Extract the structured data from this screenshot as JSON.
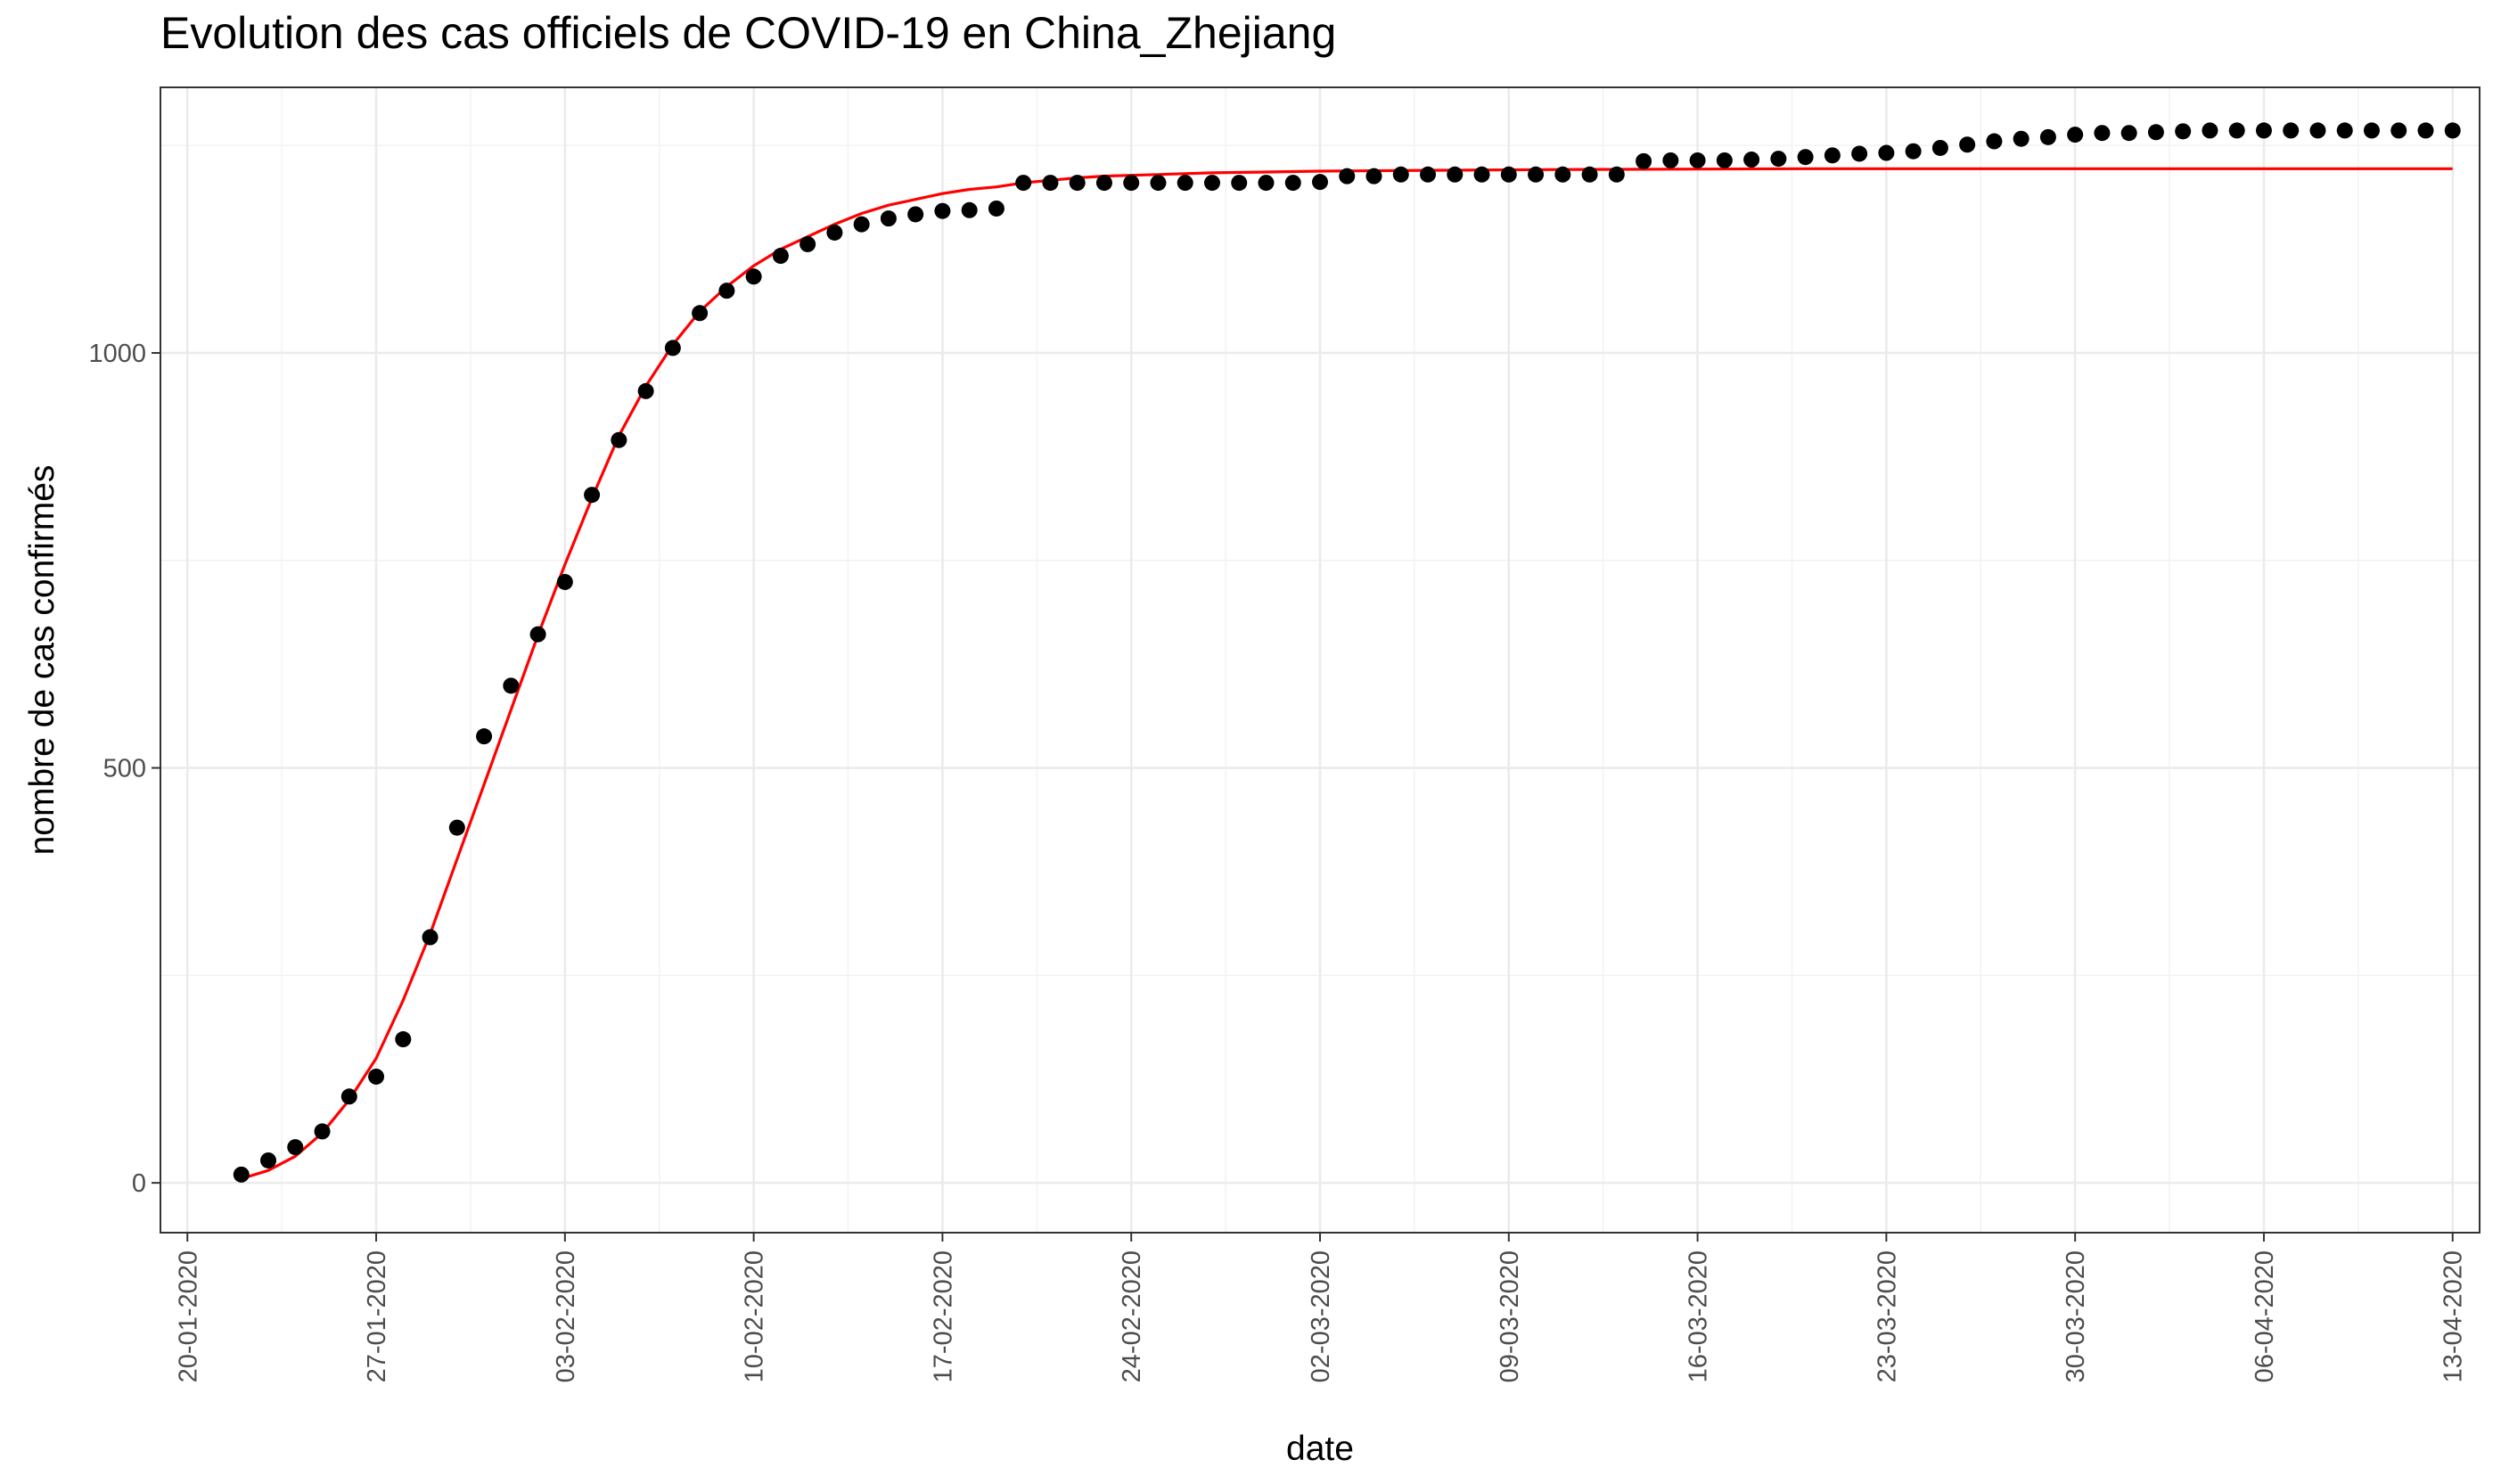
{
  "chart_data": {
    "type": "scatter",
    "title": "Evolution des cas officiels de COVID-19 en China_Zhejiang",
    "xlabel": "date",
    "ylabel": "nombre de cas confirmés",
    "x_start": "2020-01-19",
    "x_end": "2020-04-14",
    "ylim": [
      -60,
      1320
    ],
    "grid": true,
    "x_ticks": [
      "20-01-2020",
      "27-01-2020",
      "03-02-2020",
      "10-02-2020",
      "17-02-2020",
      "24-02-2020",
      "02-03-2020",
      "09-03-2020",
      "16-03-2020",
      "23-03-2020",
      "30-03-2020",
      "06-04-2020",
      "13-04-2020"
    ],
    "x_tick_dates": [
      "2020-01-20",
      "2020-01-27",
      "2020-02-03",
      "2020-02-10",
      "2020-02-17",
      "2020-02-24",
      "2020-03-02",
      "2020-03-09",
      "2020-03-16",
      "2020-03-23",
      "2020-03-30",
      "2020-04-06",
      "2020-04-13"
    ],
    "y_ticks": [
      0,
      500,
      1000
    ],
    "series": [
      {
        "type": "scatter",
        "color": "#000000",
        "dates": [
          "2020-01-22",
          "2020-01-23",
          "2020-01-24",
          "2020-01-25",
          "2020-01-26",
          "2020-01-27",
          "2020-01-28",
          "2020-01-29",
          "2020-01-30",
          "2020-01-31",
          "2020-02-01",
          "2020-02-02",
          "2020-02-03",
          "2020-02-04",
          "2020-02-05",
          "2020-02-06",
          "2020-02-07",
          "2020-02-08",
          "2020-02-09",
          "2020-02-10",
          "2020-02-11",
          "2020-02-12",
          "2020-02-13",
          "2020-02-14",
          "2020-02-15",
          "2020-02-16",
          "2020-02-17",
          "2020-02-18",
          "2020-02-19",
          "2020-02-20",
          "2020-02-21",
          "2020-02-22",
          "2020-02-23",
          "2020-02-24",
          "2020-02-25",
          "2020-02-26",
          "2020-02-27",
          "2020-02-28",
          "2020-02-29",
          "2020-03-01",
          "2020-03-02",
          "2020-03-03",
          "2020-03-04",
          "2020-03-05",
          "2020-03-06",
          "2020-03-07",
          "2020-03-08",
          "2020-03-09",
          "2020-03-10",
          "2020-03-11",
          "2020-03-12",
          "2020-03-13",
          "2020-03-14",
          "2020-03-15",
          "2020-03-16",
          "2020-03-17",
          "2020-03-18",
          "2020-03-19",
          "2020-03-20",
          "2020-03-21",
          "2020-03-22",
          "2020-03-23",
          "2020-03-24",
          "2020-03-25",
          "2020-03-26",
          "2020-03-27",
          "2020-03-28",
          "2020-03-29",
          "2020-03-30",
          "2020-03-31",
          "2020-04-01",
          "2020-04-02",
          "2020-04-03",
          "2020-04-04",
          "2020-04-05",
          "2020-04-06",
          "2020-04-07",
          "2020-04-08",
          "2020-04-09",
          "2020-04-10",
          "2020-04-11",
          "2020-04-12",
          "2020-04-13"
        ],
        "values": [
          10,
          27,
          43,
          62,
          104,
          128,
          173,
          296,
          428,
          538,
          599,
          661,
          724,
          829,
          895,
          954,
          1006,
          1048,
          1075,
          1092,
          1117,
          1131,
          1145,
          1155,
          1162,
          1167,
          1171,
          1172,
          1174,
          1205,
          1205,
          1205,
          1205,
          1205,
          1205,
          1205,
          1205,
          1205,
          1205,
          1205,
          1206,
          1213,
          1213,
          1215,
          1215,
          1215,
          1215,
          1215,
          1215,
          1215,
          1215,
          1215,
          1231,
          1232,
          1232,
          1232,
          1233,
          1234,
          1236,
          1238,
          1240,
          1241,
          1243,
          1247,
          1251,
          1255,
          1258,
          1260,
          1263,
          1265,
          1265,
          1266,
          1267,
          1268,
          1268,
          1268,
          1268,
          1268,
          1268,
          1268,
          1268,
          1268,
          1268
        ]
      },
      {
        "type": "line",
        "color": "#ff0000",
        "dates": [
          "2020-01-22",
          "2020-01-23",
          "2020-01-24",
          "2020-01-25",
          "2020-01-26",
          "2020-01-27",
          "2020-01-28",
          "2020-01-29",
          "2020-01-30",
          "2020-01-31",
          "2020-02-01",
          "2020-02-02",
          "2020-02-03",
          "2020-02-04",
          "2020-02-05",
          "2020-02-06",
          "2020-02-07",
          "2020-02-08",
          "2020-02-09",
          "2020-02-10",
          "2020-02-11",
          "2020-02-12",
          "2020-02-13",
          "2020-02-14",
          "2020-02-15",
          "2020-02-16",
          "2020-02-17",
          "2020-02-18",
          "2020-02-19",
          "2020-02-20",
          "2020-02-21",
          "2020-02-22",
          "2020-02-23",
          "2020-02-24",
          "2020-02-25",
          "2020-02-26",
          "2020-02-27",
          "2020-02-29",
          "2020-03-02",
          "2020-03-06",
          "2020-03-11",
          "2020-03-20",
          "2020-04-13"
        ],
        "values": [
          5,
          15,
          32,
          60,
          100,
          150,
          220,
          300,
          390,
          480,
          570,
          660,
          745,
          825,
          900,
          960,
          1010,
          1050,
          1080,
          1105,
          1125,
          1140,
          1155,
          1168,
          1178,
          1185,
          1192,
          1197,
          1200,
          1205,
          1208,
          1211,
          1213,
          1214,
          1215,
          1216,
          1217,
          1218,
          1219,
          1220,
          1221,
          1222,
          1222
        ]
      }
    ]
  }
}
